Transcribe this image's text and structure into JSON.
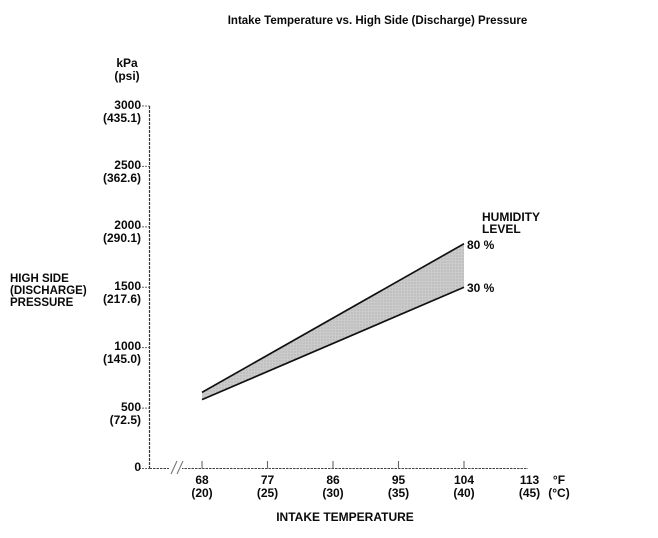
{
  "title": "Intake Temperature vs. High Side (Discharge) Pressure",
  "y_axis": {
    "unit_lines": [
      "kPa",
      "(psi)"
    ],
    "label_lines": [
      "HIGH SIDE",
      "(DISCHARGE)",
      "PRESSURE"
    ],
    "ticks": [
      {
        "kpa": "3000",
        "psi": "(435.1)",
        "value": 3000
      },
      {
        "kpa": "2500",
        "psi": "(362.6)",
        "value": 2500
      },
      {
        "kpa": "2000",
        "psi": "(290.1)",
        "value": 2000
      },
      {
        "kpa": "1500",
        "psi": "(217.6)",
        "value": 1500
      },
      {
        "kpa": "1000",
        "psi": "(145.0)",
        "value": 1000
      },
      {
        "kpa": "500",
        "psi": "(72.5)",
        "value": 500
      },
      {
        "kpa": "0",
        "psi": "",
        "value": 0
      }
    ]
  },
  "x_axis": {
    "label": "INTAKE TEMPERATURE",
    "unit_f": "°F",
    "unit_c": "(°C)",
    "ticks": [
      {
        "f": "68",
        "c": "(20)",
        "value": 68,
        "tick_mark": true
      },
      {
        "f": "77",
        "c": "(25)",
        "value": 77,
        "tick_mark": true
      },
      {
        "f": "86",
        "c": "(30)",
        "value": 86,
        "tick_mark": true
      },
      {
        "f": "95",
        "c": "(35)",
        "value": 95,
        "tick_mark": true
      },
      {
        "f": "104",
        "c": "(40)",
        "value": 104,
        "tick_mark": true
      },
      {
        "f": "113",
        "c": "(45)",
        "value": 113,
        "tick_mark": false
      }
    ]
  },
  "legend": {
    "title_lines": [
      "HUMIDITY",
      "LEVEL"
    ],
    "entries": [
      "80 %",
      "30 %"
    ]
  },
  "chart_data": {
    "type": "area",
    "title": "Intake Temperature vs. High Side (Discharge) Pressure",
    "xlabel": "INTAKE TEMPERATURE (°F / °C)",
    "ylabel": "HIGH SIDE (DISCHARGE) PRESSURE (kPa / psi)",
    "x_f": [
      68,
      104
    ],
    "series": [
      {
        "name": "80 %",
        "y_kpa": [
          630,
          1860
        ]
      },
      {
        "name": "30 %",
        "y_kpa": [
          570,
          1500
        ]
      }
    ],
    "x_ticks_f": [
      68,
      77,
      86,
      95,
      104,
      113
    ],
    "x_ticks_c": [
      20,
      25,
      30,
      35,
      40,
      45
    ],
    "y_ticks_kpa": [
      0,
      500,
      1000,
      1500,
      2000,
      2500,
      3000
    ],
    "y_ticks_psi": [
      0,
      72.5,
      145.0,
      217.6,
      290.1,
      362.6,
      435.1
    ],
    "ylim_kpa": [
      0,
      3000
    ],
    "axis_break_on_x": true,
    "band_fill": "#cbcbcb",
    "band_dot": "#b0b0b0",
    "line_color": "#111111",
    "axis_color": "#444444",
    "legend_position": "right-of-band-end"
  }
}
